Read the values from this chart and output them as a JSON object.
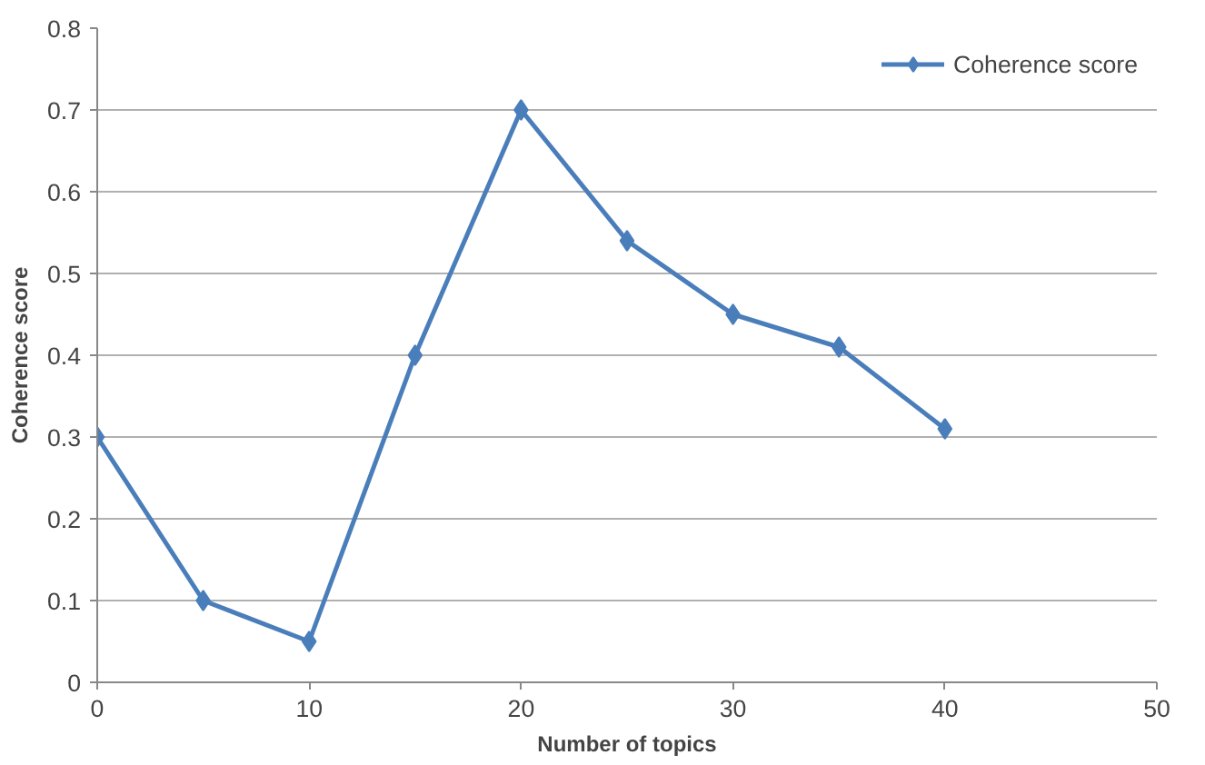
{
  "chart_data": {
    "type": "line",
    "xlabel": "Number of topics",
    "ylabel": "Coherence score",
    "x": [
      0,
      5,
      10,
      15,
      20,
      25,
      30,
      35,
      40
    ],
    "series": [
      {
        "name": "Coherence score",
        "color": "#4a7ebb",
        "values": [
          0.3,
          0.1,
          0.05,
          0.4,
          0.7,
          0.54,
          0.45,
          0.41,
          0.31
        ]
      }
    ],
    "xlim": [
      0,
      50
    ],
    "xticks": [
      0,
      10,
      20,
      30,
      40,
      50
    ],
    "ylim": [
      0,
      0.8
    ],
    "yticks": [
      0,
      0.1,
      0.2,
      0.3,
      0.4,
      0.5,
      0.6,
      0.7,
      0.8
    ],
    "grid": "y",
    "legend": "top right",
    "marker": "diamond",
    "line_style": "solid"
  }
}
